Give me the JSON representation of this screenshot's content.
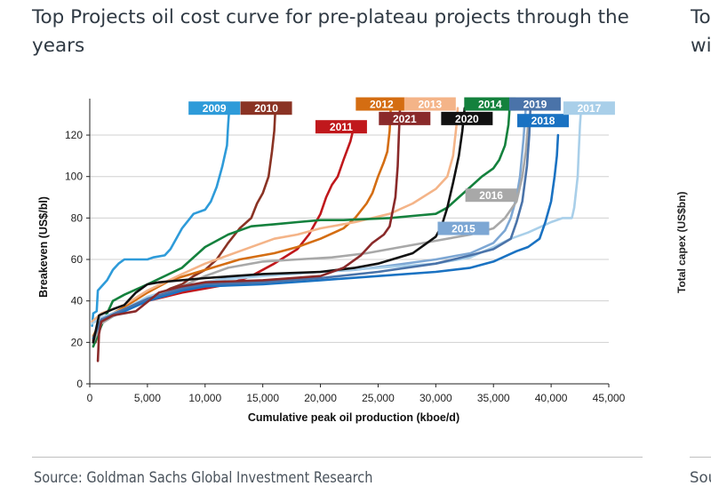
{
  "title": "Top Projects oil cost curve for pre-plateau projects through the years",
  "right_panel": {
    "title_fragment": "To\nwi",
    "ylabel_fragment": "Total capex (US$bn)",
    "source_fragment": "Sou"
  },
  "source": "Source: Goldman Sachs Global Investment Research",
  "chart_data": {
    "type": "line",
    "title": "Top Projects oil cost curve for pre-plateau projects through the years",
    "xlabel": "Cumulative peak oil production (kboe/d)",
    "ylabel": "Breakeven (US$/bl)",
    "xlim": [
      0,
      45000
    ],
    "ylim": [
      0,
      135
    ],
    "xticks": [
      0,
      5000,
      10000,
      15000,
      20000,
      25000,
      30000,
      35000,
      40000,
      45000
    ],
    "xtick_labels": [
      "0",
      "5,000",
      "10,000",
      "15,000",
      "20,000",
      "25,000",
      "30,000",
      "35,000",
      "40,000",
      "45,000"
    ],
    "yticks": [
      0,
      20,
      40,
      60,
      80,
      100,
      120
    ],
    "ytick_labels": [
      "0",
      "20",
      "40",
      "60",
      "80",
      "100",
      "120"
    ],
    "grid": "horizontal",
    "legend": "inline labels",
    "series": [
      {
        "name": "2009",
        "color": "#2e9bd9",
        "points": [
          [
            200,
            28
          ],
          [
            300,
            34
          ],
          [
            600,
            35
          ],
          [
            700,
            45
          ],
          [
            1500,
            50
          ],
          [
            2000,
            55
          ],
          [
            2500,
            58
          ],
          [
            3000,
            60
          ],
          [
            5000,
            60
          ],
          [
            5500,
            61
          ],
          [
            6500,
            62
          ],
          [
            7000,
            65
          ],
          [
            8000,
            75
          ],
          [
            9000,
            82
          ],
          [
            10000,
            84
          ],
          [
            10500,
            88
          ],
          [
            11000,
            95
          ],
          [
            11500,
            105
          ],
          [
            11900,
            115
          ],
          [
            12000,
            125
          ],
          [
            12100,
            133
          ]
        ]
      },
      {
        "name": "2010",
        "color": "#8a3324",
        "points": [
          [
            500,
            20
          ],
          [
            1000,
            30
          ],
          [
            2000,
            34
          ],
          [
            3000,
            36
          ],
          [
            4000,
            38
          ],
          [
            5000,
            40
          ],
          [
            6000,
            43
          ],
          [
            7000,
            46
          ],
          [
            8000,
            48
          ],
          [
            9000,
            52
          ],
          [
            10000,
            55
          ],
          [
            11000,
            60
          ],
          [
            12000,
            68
          ],
          [
            13000,
            75
          ],
          [
            14000,
            80
          ],
          [
            14500,
            87
          ],
          [
            15000,
            92
          ],
          [
            15500,
            100
          ],
          [
            15800,
            112
          ],
          [
            16000,
            122
          ],
          [
            16100,
            133
          ]
        ]
      },
      {
        "name": "2011",
        "color": "#c0181c",
        "points": [
          [
            300,
            21
          ],
          [
            1000,
            30
          ],
          [
            3000,
            36
          ],
          [
            5000,
            40
          ],
          [
            8000,
            44
          ],
          [
            10000,
            46
          ],
          [
            12000,
            48
          ],
          [
            14000,
            52
          ],
          [
            16000,
            58
          ],
          [
            18000,
            65
          ],
          [
            19000,
            72
          ],
          [
            20000,
            82
          ],
          [
            20500,
            90
          ],
          [
            21000,
            96
          ],
          [
            21500,
            100
          ],
          [
            22000,
            108
          ],
          [
            22600,
            117
          ],
          [
            22900,
            124
          ]
        ]
      },
      {
        "name": "2012",
        "color": "#d46d12",
        "points": [
          [
            300,
            23
          ],
          [
            1000,
            31
          ],
          [
            3000,
            37
          ],
          [
            5000,
            44
          ],
          [
            7000,
            50
          ],
          [
            10000,
            55
          ],
          [
            13000,
            60
          ],
          [
            16000,
            63
          ],
          [
            18000,
            66
          ],
          [
            20000,
            70
          ],
          [
            22000,
            75
          ],
          [
            23000,
            80
          ],
          [
            24000,
            87
          ],
          [
            24500,
            92
          ],
          [
            25000,
            100
          ],
          [
            25500,
            107
          ],
          [
            25800,
            112
          ],
          [
            26000,
            122
          ],
          [
            26100,
            133
          ]
        ]
      },
      {
        "name": "2013",
        "color": "#f4b488",
        "points": [
          [
            200,
            30
          ],
          [
            1000,
            34
          ],
          [
            3000,
            38
          ],
          [
            5000,
            45
          ],
          [
            8000,
            53
          ],
          [
            10000,
            58
          ],
          [
            13000,
            64
          ],
          [
            16000,
            70
          ],
          [
            18000,
            72
          ],
          [
            20000,
            75
          ],
          [
            23000,
            78
          ],
          [
            26000,
            82
          ],
          [
            28000,
            87
          ],
          [
            30000,
            94
          ],
          [
            31000,
            100
          ],
          [
            31500,
            110
          ],
          [
            31800,
            125
          ],
          [
            31900,
            133
          ]
        ]
      },
      {
        "name": "2014",
        "color": "#14813d",
        "points": [
          [
            300,
            18
          ],
          [
            1000,
            28
          ],
          [
            2000,
            40
          ],
          [
            3000,
            43
          ],
          [
            5000,
            48
          ],
          [
            8000,
            56
          ],
          [
            10000,
            66
          ],
          [
            12000,
            72
          ],
          [
            14000,
            76
          ],
          [
            16000,
            77
          ],
          [
            18000,
            78
          ],
          [
            20000,
            79
          ],
          [
            22000,
            79
          ],
          [
            26000,
            80
          ],
          [
            28000,
            81
          ],
          [
            30000,
            82
          ],
          [
            31000,
            85
          ],
          [
            32000,
            90
          ],
          [
            33000,
            95
          ],
          [
            34000,
            100
          ],
          [
            35000,
            104
          ],
          [
            35500,
            108
          ],
          [
            36000,
            115
          ],
          [
            36300,
            125
          ],
          [
            36400,
            133
          ]
        ]
      },
      {
        "name": "2015",
        "color": "#7da7d4",
        "points": [
          [
            300,
            22
          ],
          [
            1000,
            30
          ],
          [
            3000,
            35
          ],
          [
            5000,
            40
          ],
          [
            8000,
            45
          ],
          [
            10000,
            49
          ],
          [
            12000,
            51
          ],
          [
            14000,
            52
          ],
          [
            17000,
            53
          ],
          [
            20000,
            54
          ],
          [
            23000,
            55
          ],
          [
            26000,
            57
          ],
          [
            30000,
            60
          ],
          [
            33000,
            63
          ],
          [
            35000,
            68
          ],
          [
            36000,
            74
          ],
          [
            36500,
            80
          ],
          [
            37000,
            90
          ],
          [
            37300,
            100
          ],
          [
            37600,
            118
          ],
          [
            37800,
            133
          ]
        ]
      },
      {
        "name": "2016",
        "color": "#a8a8a8",
        "points": [
          [
            300,
            20
          ],
          [
            1000,
            29
          ],
          [
            3000,
            36
          ],
          [
            5000,
            41
          ],
          [
            8000,
            47
          ],
          [
            10000,
            52
          ],
          [
            12000,
            56
          ],
          [
            15000,
            59
          ],
          [
            18000,
            60
          ],
          [
            21000,
            61
          ],
          [
            24000,
            63
          ],
          [
            27000,
            66
          ],
          [
            30000,
            69
          ],
          [
            33000,
            72
          ],
          [
            35000,
            75
          ],
          [
            36000,
            80
          ],
          [
            37000,
            88
          ],
          [
            37500,
            100
          ],
          [
            37800,
            112
          ],
          [
            38000,
            125
          ]
        ]
      },
      {
        "name": "2017",
        "color": "#a9cfe9",
        "points": [
          [
            200,
            29
          ],
          [
            1000,
            32
          ],
          [
            3000,
            36
          ],
          [
            5000,
            42
          ],
          [
            8000,
            47
          ],
          [
            11000,
            50
          ],
          [
            15000,
            52
          ],
          [
            20000,
            54
          ],
          [
            25000,
            56
          ],
          [
            30000,
            58
          ],
          [
            33000,
            61
          ],
          [
            35000,
            66
          ],
          [
            36500,
            70
          ],
          [
            38000,
            73
          ],
          [
            40000,
            78
          ],
          [
            41000,
            80
          ],
          [
            41800,
            80
          ],
          [
            42000,
            85
          ],
          [
            42300,
            100
          ],
          [
            42400,
            113
          ],
          [
            42500,
            125
          ],
          [
            42600,
            133
          ]
        ]
      },
      {
        "name": "2018",
        "color": "#1a72c2",
        "points": [
          [
            300,
            22
          ],
          [
            1000,
            31
          ],
          [
            3000,
            35
          ],
          [
            5000,
            40
          ],
          [
            8000,
            45
          ],
          [
            10000,
            47
          ],
          [
            15000,
            48
          ],
          [
            20000,
            50
          ],
          [
            25000,
            52
          ],
          [
            30000,
            54
          ],
          [
            33000,
            56
          ],
          [
            35000,
            59
          ],
          [
            37000,
            64
          ],
          [
            38000,
            66
          ],
          [
            39000,
            70
          ],
          [
            39500,
            78
          ],
          [
            40000,
            88
          ],
          [
            40300,
            100
          ],
          [
            40500,
            110
          ],
          [
            40600,
            120
          ]
        ]
      },
      {
        "name": "2019",
        "color": "#4a73a9",
        "points": [
          [
            300,
            22
          ],
          [
            1000,
            31
          ],
          [
            3000,
            36
          ],
          [
            5000,
            41
          ],
          [
            8000,
            46
          ],
          [
            10000,
            48
          ],
          [
            15000,
            49
          ],
          [
            20000,
            51
          ],
          [
            25000,
            54
          ],
          [
            30000,
            58
          ],
          [
            33000,
            62
          ],
          [
            35000,
            65
          ],
          [
            36500,
            70
          ],
          [
            37000,
            78
          ],
          [
            37500,
            88
          ],
          [
            37900,
            105
          ],
          [
            38100,
            120
          ],
          [
            38200,
            133
          ]
        ]
      },
      {
        "name": "2020",
        "color": "#111111",
        "points": [
          [
            300,
            20
          ],
          [
            800,
            33
          ],
          [
            2000,
            36
          ],
          [
            3000,
            38
          ],
          [
            4000,
            44
          ],
          [
            5000,
            48
          ],
          [
            6000,
            49
          ],
          [
            10000,
            51
          ],
          [
            15000,
            53
          ],
          [
            20000,
            54
          ],
          [
            23000,
            56
          ],
          [
            25000,
            58
          ],
          [
            28000,
            63
          ],
          [
            29000,
            67
          ],
          [
            30000,
            71
          ],
          [
            30500,
            76
          ],
          [
            31000,
            85
          ],
          [
            31500,
            97
          ],
          [
            32000,
            110
          ],
          [
            32300,
            122
          ],
          [
            32500,
            133
          ]
        ]
      },
      {
        "name": "2021",
        "color": "#8a2a2a",
        "points": [
          [
            700,
            11
          ],
          [
            800,
            24
          ],
          [
            1000,
            30
          ],
          [
            2000,
            33
          ],
          [
            4000,
            35
          ],
          [
            6000,
            44
          ],
          [
            8000,
            47
          ],
          [
            10000,
            49
          ],
          [
            15000,
            50
          ],
          [
            20000,
            52
          ],
          [
            22000,
            56
          ],
          [
            23500,
            62
          ],
          [
            24500,
            68
          ],
          [
            25500,
            72
          ],
          [
            26000,
            76
          ],
          [
            26500,
            90
          ],
          [
            26700,
            105
          ],
          [
            26800,
            120
          ],
          [
            26900,
            133
          ]
        ]
      }
    ],
    "labels": [
      {
        "text": "2009",
        "x": 10800,
        "y": 133,
        "color": "#2e9bd9"
      },
      {
        "text": "2010",
        "x": 15300,
        "y": 133,
        "color": "#8a3324"
      },
      {
        "text": "2011",
        "x": 21800,
        "y": 124,
        "color": "#c0181c"
      },
      {
        "text": "2012",
        "x": 25300,
        "y": 135,
        "color": "#d46d12"
      },
      {
        "text": "2021",
        "x": 27300,
        "y": 128,
        "color": "#8a2a2a"
      },
      {
        "text": "2013",
        "x": 29500,
        "y": 135,
        "color": "#f4b488"
      },
      {
        "text": "2020",
        "x": 32700,
        "y": 128,
        "color": "#111111"
      },
      {
        "text": "2014",
        "x": 34700,
        "y": 135,
        "color": "#14813d"
      },
      {
        "text": "2019",
        "x": 38600,
        "y": 135,
        "color": "#4a73a9"
      },
      {
        "text": "2018",
        "x": 39300,
        "y": 127,
        "color": "#1a72c2"
      },
      {
        "text": "2017",
        "x": 43300,
        "y": 133,
        "color": "#a9cfe9"
      },
      {
        "text": "2016",
        "x": 34800,
        "y": 91,
        "color": "#a8a8a8"
      },
      {
        "text": "2015",
        "x": 32400,
        "y": 75,
        "color": "#7da7d4"
      }
    ]
  }
}
